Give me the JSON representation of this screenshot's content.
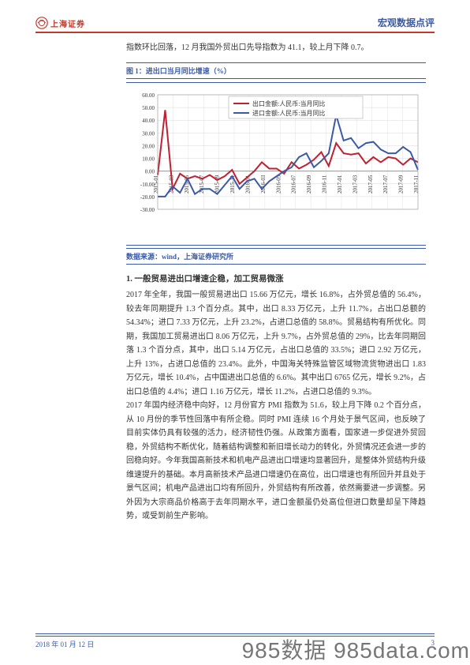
{
  "header": {
    "logo_text": "上海证券",
    "right_text": "宏观数据点评"
  },
  "intro_text": "指数环比回落，12 月我国外贸出口先导指数为 41.1，较上月下降 0.7。",
  "chart": {
    "title": "图 1：进出口当月同比增速（%）",
    "type": "line",
    "legend": [
      {
        "label": "出口金额:人民币:当月同比",
        "color": "#c02032"
      },
      {
        "label": "进口金额:人民币:当月同比",
        "color": "#3a5aa8"
      }
    ],
    "ylim": [
      -30,
      60
    ],
    "ytick_step": 10,
    "yticks": [
      -30,
      -20,
      -10,
      0,
      10,
      20,
      30,
      40,
      50,
      60
    ],
    "x_labels": [
      "2015-01",
      "2015-03",
      "2015-05",
      "2015-07",
      "2015-09",
      "2015-11",
      "2016-01",
      "2016-03",
      "2016-05",
      "2016-07",
      "2016-09",
      "2016-11",
      "2017-01",
      "2017-03",
      "2017-05",
      "2017-07",
      "2017-09",
      "2017-11"
    ],
    "series": {
      "export": {
        "color": "#c02032",
        "line_width": 2,
        "values": [
          -3,
          48,
          -14,
          -2,
          -6,
          -4,
          -6,
          -3,
          -7,
          -4,
          1,
          -10,
          -5,
          0,
          7,
          2,
          2,
          -2,
          7,
          2,
          5,
          9,
          15,
          4,
          22,
          14,
          13,
          14,
          6,
          11,
          7,
          11,
          10,
          5,
          10,
          7
        ]
      },
      "import": {
        "color": "#3a5aa8",
        "line_width": 2,
        "values": [
          -20,
          -20,
          -12,
          -17,
          -6,
          -18,
          -14,
          -14,
          -18,
          -11,
          -4,
          -14,
          -8,
          -6,
          -14,
          -8,
          -4,
          0,
          3,
          11,
          14,
          3,
          8,
          14,
          44,
          24,
          26,
          18,
          22,
          23,
          17,
          14,
          14,
          19,
          15,
          1
        ]
      }
    },
    "grid_color": "#d9d9d9",
    "background_color": "#ffffff",
    "axis_fontsize": 7,
    "label_fontsize": 8,
    "source": "数据来源：wind，上海证券研究所"
  },
  "section": {
    "title": "1.  一般贸易进出口增速企稳，加工贸易微涨",
    "para1": "2017 年全年，我国一般贸易进出口 15.66 万亿元，增长 16.8%，占外贸总值的 56.4%，较去年同期提升 1.3 个百分点。其中，出口 8.33 万亿元，上升 11.7%，占出口总额的 54.34%；进口 7.33 万亿元，上升 23.2%，占进口总值的 58.8%。贸易结构有所优化。同期，我国加工贸易进出口 8.06 万亿元，上升 9.7%，占外贸总值的 29%，比去年同期回落 1.3 个百分点，其中，出口 5.14 万亿元，占出口总值的 33.5%；进口 2.92 万亿元，上升 13%，占进口总值的 23.4%。此外，中国海关特殊监管区域物流货物进出口 1.83 万亿元，增长 10.4%，占中国进出口总值的 6.6%。其中出口 6765 亿元，增长 9.2%，占出口总值的 4.4%；进口 1.16 万亿元，增长 11.2%，占进口总值的 9.3%。",
    "para2": "2017 年国内经济稳中向好，12 月份官方 PMI 指数为 51.6，较上月下降 0.2 个百分点，从 10 月份的季节性回落中有所企稳。同时 PMI 连续 16 个月处于景气区间，也反映了目前实体仍具有较强的活力，经济韧性仍强。从政策方面看，国家进一步促进外贸回稳，外贸结构不断优化，随着结构调整和新旧增长动力的转化，外贸情况还会进一步的回稳向好。今年我国高新技术和机电产品进出口增速均显著回升，是整体外贸结构升级维速提升的基础。本月高新技术产品进口增速仍在高位，出口增速也有所回升并且处于景气区间；机电产品进出口均有所回升，外贸结构有所改善，依然需要进一步调整。另外因为大宗商品价格高于去年同期水平，进口金额虽仍处高位但进口数量却呈下降趋势，或受到前生产影响。"
  },
  "footer": {
    "date": "2018 年 01 月 12 日",
    "page_num": "3"
  },
  "watermark": "985数据 985data.com"
}
